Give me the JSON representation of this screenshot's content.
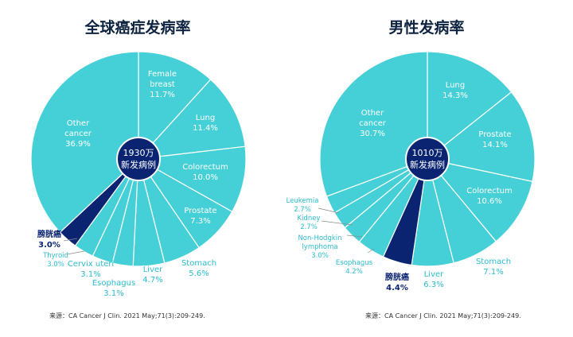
{
  "chart_data": [
    {
      "type": "pie",
      "title": "全球癌症发病率",
      "center_label": [
        "1930万",
        "新发病例"
      ],
      "source": "来源：CA Cancer J Clin. 2021 May;71(3):209-249.",
      "highlight_color": "#0a2472",
      "base_color": "#45cfd6",
      "slices": [
        {
          "label": [
            "Female",
            "breast"
          ],
          "value": 11.7,
          "value_text": "11.7%"
        },
        {
          "label": [
            "Lung"
          ],
          "value": 11.4,
          "value_text": "11.4%"
        },
        {
          "label": [
            "Colorectum"
          ],
          "value": 10.0,
          "value_text": "10.0%"
        },
        {
          "label": [
            "Prostate"
          ],
          "value": 7.3,
          "value_text": "7.3%"
        },
        {
          "label": [
            "Stomach"
          ],
          "value": 5.6,
          "value_text": "5.6%"
        },
        {
          "label": [
            "Liver"
          ],
          "value": 4.7,
          "value_text": "4.7%"
        },
        {
          "label": [
            "Esophagus"
          ],
          "value": 3.1,
          "value_text": "3.1%"
        },
        {
          "label": [
            "Cervix uteri"
          ],
          "value": 3.1,
          "value_text": "3.1%"
        },
        {
          "label": [
            "Thyroid"
          ],
          "value": 3.0,
          "value_text": "3.0%"
        },
        {
          "label": [
            "膀胱癌"
          ],
          "value": 3.0,
          "value_text": "3.0%",
          "highlight": true
        },
        {
          "label": [
            "Other",
            "cancer"
          ],
          "value": 36.9,
          "value_text": "36.9%"
        }
      ]
    },
    {
      "type": "pie",
      "title": "男性发病率",
      "center_label": [
        "1010万",
        "新发病例"
      ],
      "source": "来源：CA Cancer J Clin. 2021 May;71(3):209-249.",
      "highlight_color": "#0a2472",
      "base_color": "#45cfd6",
      "slices": [
        {
          "label": [
            "Lung"
          ],
          "value": 14.3,
          "value_text": "14.3%"
        },
        {
          "label": [
            "Prostate"
          ],
          "value": 14.1,
          "value_text": "14.1%"
        },
        {
          "label": [
            "Colorectum"
          ],
          "value": 10.6,
          "value_text": "10.6%"
        },
        {
          "label": [
            "Stomach"
          ],
          "value": 7.1,
          "value_text": "7.1%"
        },
        {
          "label": [
            "Liver"
          ],
          "value": 6.3,
          "value_text": "6.3%"
        },
        {
          "label": [
            "膀胱癌"
          ],
          "value": 4.4,
          "value_text": "4.4%",
          "highlight": true
        },
        {
          "label": [
            "Esophagus"
          ],
          "value": 4.2,
          "value_text": "4.2%"
        },
        {
          "label": [
            "Non-Hodgkin",
            "lymphoma"
          ],
          "value": 3.0,
          "value_text": "3.0%"
        },
        {
          "label": [
            "Kidney"
          ],
          "value": 2.7,
          "value_text": "2.7%"
        },
        {
          "label": [
            "Leukemia"
          ],
          "value": 2.7,
          "value_text": "2.7%"
        },
        {
          "label": [
            "Other",
            "cancer"
          ],
          "value": 30.7,
          "value_text": "30.7%"
        }
      ]
    }
  ]
}
